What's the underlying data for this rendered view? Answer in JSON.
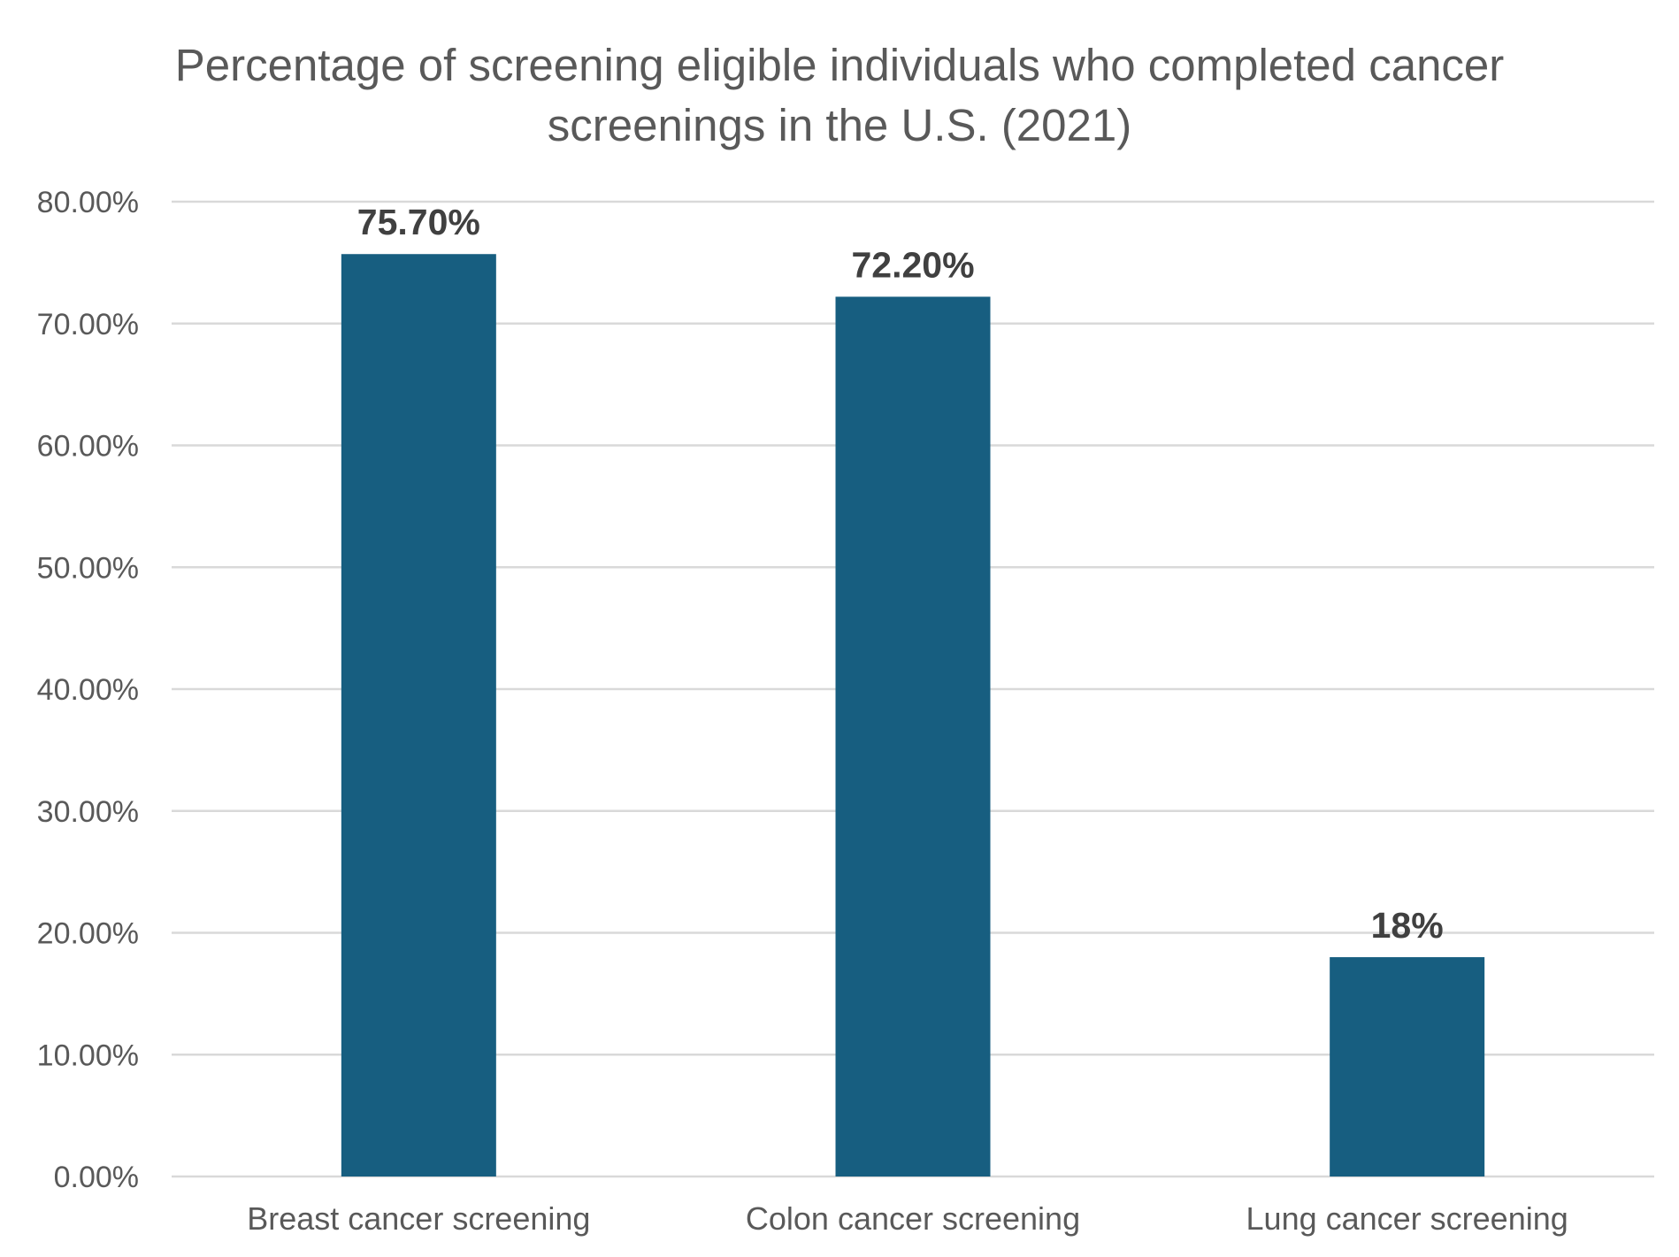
{
  "chart_data": {
    "type": "bar",
    "title": "Percentage of screening eligible individuals who completed cancer screenings in the U.S. (2021)",
    "categories": [
      "Breast cancer screening",
      "Colon cancer screening",
      "Lung cancer screening"
    ],
    "values": [
      75.7,
      72.2,
      18
    ],
    "data_labels": [
      "75.70%",
      "72.20%",
      "18%"
    ],
    "ylim": [
      0,
      80
    ],
    "yticks": [
      0,
      10,
      20,
      30,
      40,
      50,
      60,
      70,
      80
    ],
    "ytick_labels": [
      "0.00%",
      "10.00%",
      "20.00%",
      "30.00%",
      "40.00%",
      "50.00%",
      "60.00%",
      "70.00%",
      "80.00%"
    ],
    "xlabel": "",
    "ylabel": "",
    "grid": true,
    "legend": "none",
    "bar_color": "#175e80"
  }
}
